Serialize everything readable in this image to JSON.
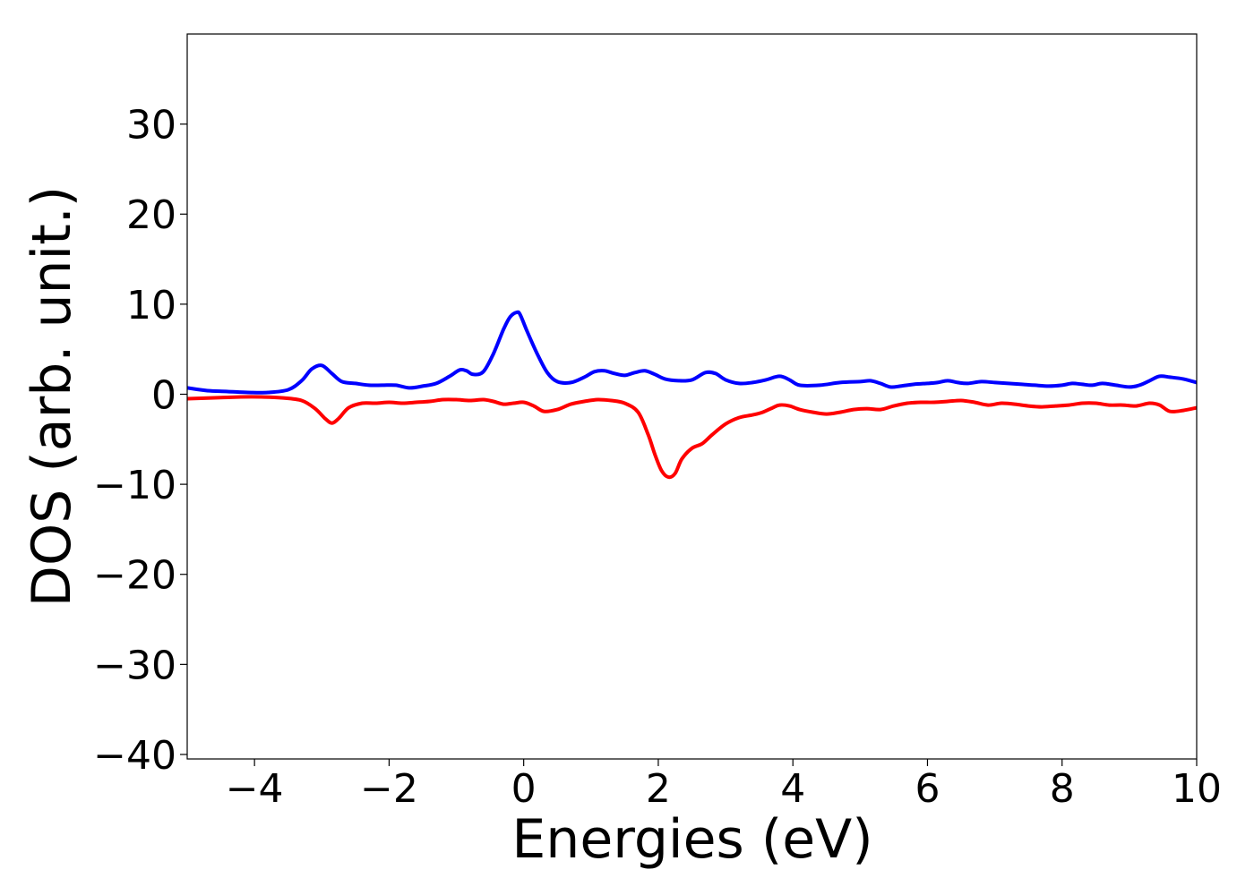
{
  "chart_data": {
    "type": "line",
    "title": "",
    "xlabel": "Energies (eV)",
    "ylabel": "DOS (arb. unit.)",
    "xlim": [
      -5,
      10
    ],
    "ylim": [
      -40.5,
      40
    ],
    "xticks": [
      -4,
      -2,
      0,
      2,
      4,
      6,
      8,
      10
    ],
    "xtick_labels": [
      "−4",
      "−2",
      "0",
      "2",
      "4",
      "6",
      "8",
      "10"
    ],
    "yticks": [
      -40,
      -30,
      -20,
      -10,
      0,
      10,
      20,
      30
    ],
    "ytick_labels": [
      "−40",
      "−30",
      "−20",
      "−10",
      "0",
      "10",
      "20",
      "30"
    ],
    "grid": false,
    "legend": "none",
    "series": [
      {
        "color": "#0000ff",
        "x": [
          -5.0,
          -4.7,
          -4.4,
          -4.1,
          -3.8,
          -3.5,
          -3.3,
          -3.15,
          -3.0,
          -2.85,
          -2.7,
          -2.5,
          -2.3,
          -2.1,
          -1.9,
          -1.7,
          -1.5,
          -1.3,
          -1.1,
          -0.95,
          -0.85,
          -0.75,
          -0.6,
          -0.45,
          -0.3,
          -0.2,
          -0.1,
          -0.05,
          0.05,
          0.2,
          0.35,
          0.5,
          0.7,
          0.9,
          1.05,
          1.2,
          1.35,
          1.5,
          1.65,
          1.8,
          1.95,
          2.1,
          2.3,
          2.5,
          2.7,
          2.85,
          3.0,
          3.2,
          3.4,
          3.6,
          3.8,
          3.95,
          4.1,
          4.4,
          4.7,
          5.0,
          5.15,
          5.3,
          5.45,
          5.6,
          5.8,
          6.0,
          6.15,
          6.3,
          6.45,
          6.6,
          6.8,
          7.0,
          7.2,
          7.4,
          7.6,
          7.8,
          8.0,
          8.15,
          8.3,
          8.45,
          8.6,
          8.8,
          9.0,
          9.15,
          9.3,
          9.45,
          9.6,
          9.8,
          10.0
        ],
        "y": [
          0.7,
          0.4,
          0.3,
          0.2,
          0.2,
          0.5,
          1.5,
          2.8,
          3.2,
          2.3,
          1.4,
          1.2,
          1.0,
          1.0,
          1.0,
          0.7,
          0.9,
          1.2,
          2.0,
          2.7,
          2.6,
          2.2,
          2.5,
          4.5,
          7.2,
          8.6,
          9.1,
          8.8,
          7.0,
          4.5,
          2.4,
          1.4,
          1.3,
          1.9,
          2.5,
          2.6,
          2.3,
          2.1,
          2.4,
          2.6,
          2.2,
          1.7,
          1.5,
          1.6,
          2.4,
          2.3,
          1.6,
          1.2,
          1.3,
          1.6,
          2.0,
          1.6,
          1.0,
          1.0,
          1.3,
          1.4,
          1.5,
          1.2,
          0.8,
          0.9,
          1.1,
          1.2,
          1.3,
          1.5,
          1.3,
          1.2,
          1.4,
          1.3,
          1.2,
          1.1,
          1.0,
          0.9,
          1.0,
          1.2,
          1.1,
          1.0,
          1.2,
          1.0,
          0.8,
          1.0,
          1.5,
          2.0,
          1.9,
          1.7,
          1.3
        ]
      },
      {
        "color": "#ff0000",
        "x": [
          -5.0,
          -4.6,
          -4.2,
          -3.9,
          -3.6,
          -3.3,
          -3.1,
          -2.95,
          -2.85,
          -2.75,
          -2.6,
          -2.4,
          -2.2,
          -2.0,
          -1.8,
          -1.6,
          -1.4,
          -1.2,
          -1.0,
          -0.8,
          -0.6,
          -0.45,
          -0.3,
          -0.15,
          0.0,
          0.15,
          0.3,
          0.5,
          0.7,
          0.9,
          1.1,
          1.3,
          1.5,
          1.7,
          1.85,
          1.95,
          2.05,
          2.15,
          2.25,
          2.35,
          2.5,
          2.65,
          2.8,
          3.0,
          3.2,
          3.4,
          3.55,
          3.7,
          3.8,
          3.95,
          4.1,
          4.3,
          4.5,
          4.7,
          4.9,
          5.1,
          5.3,
          5.5,
          5.7,
          5.9,
          6.1,
          6.3,
          6.5,
          6.7,
          6.9,
          7.1,
          7.3,
          7.5,
          7.7,
          7.9,
          8.1,
          8.3,
          8.5,
          8.7,
          8.9,
          9.1,
          9.3,
          9.45,
          9.6,
          9.8,
          10.0
        ],
        "y": [
          -0.5,
          -0.4,
          -0.3,
          -0.3,
          -0.4,
          -0.7,
          -1.6,
          -2.7,
          -3.2,
          -2.7,
          -1.5,
          -1.0,
          -1.0,
          -0.9,
          -1.0,
          -0.9,
          -0.8,
          -0.6,
          -0.6,
          -0.7,
          -0.6,
          -0.8,
          -1.1,
          -1.0,
          -0.9,
          -1.3,
          -1.9,
          -1.7,
          -1.1,
          -0.8,
          -0.6,
          -0.7,
          -1.0,
          -2.0,
          -4.5,
          -6.7,
          -8.5,
          -9.2,
          -8.8,
          -7.2,
          -6.0,
          -5.5,
          -4.5,
          -3.3,
          -2.6,
          -2.3,
          -2.0,
          -1.5,
          -1.2,
          -1.3,
          -1.7,
          -2.0,
          -2.2,
          -2.0,
          -1.7,
          -1.6,
          -1.7,
          -1.3,
          -1.0,
          -0.9,
          -0.9,
          -0.8,
          -0.7,
          -0.9,
          -1.2,
          -1.0,
          -1.1,
          -1.3,
          -1.4,
          -1.3,
          -1.2,
          -1.0,
          -1.0,
          -1.2,
          -1.2,
          -1.3,
          -1.0,
          -1.2,
          -1.9,
          -1.8,
          -1.5
        ]
      }
    ]
  }
}
